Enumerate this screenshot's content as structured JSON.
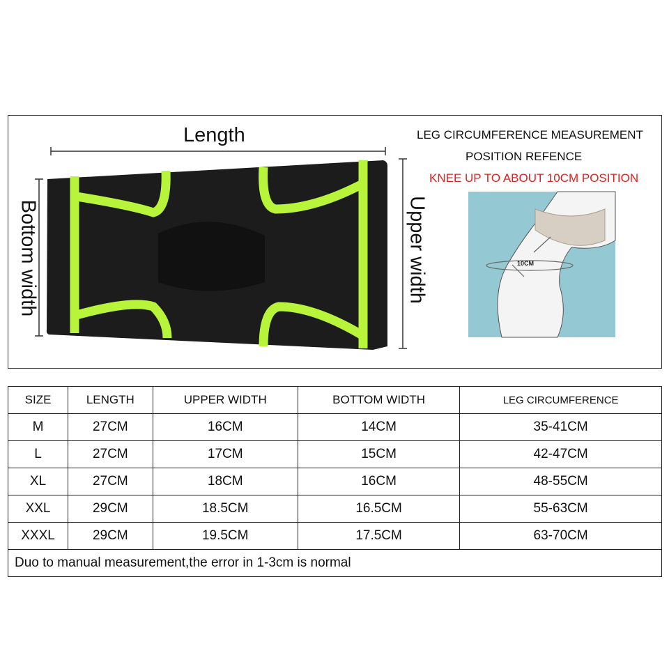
{
  "diagram": {
    "length_label": "Length",
    "bottom_width_label": "Bottom width",
    "upper_width_label": "Upper width",
    "measure_title_line1": "LEG CIRCUMFERENCE MEASUREMENT",
    "measure_title_line2": "POSITION REFENCE",
    "measure_note": "KNEE UP TO ABOUT 10CM POSITION",
    "knee_label": "10CM",
    "colors": {
      "sleeve": "#1c1c1c",
      "accent": "#b8f53a",
      "note": "#e0201c",
      "knee_bg": "#94c8d2"
    }
  },
  "size_table": {
    "headers": [
      "SIZE",
      "LENGTH",
      "UPPER WIDTH",
      "BOTTOM WIDTH",
      "LEG CIRCUMFERENCE"
    ],
    "rows": [
      [
        "M",
        "27CM",
        "16CM",
        "14CM",
        "35-41CM"
      ],
      [
        "L",
        "27CM",
        "17CM",
        "15CM",
        "42-47CM"
      ],
      [
        "XL",
        "27CM",
        "18CM",
        "16CM",
        "48-55CM"
      ],
      [
        "XXL",
        "29CM",
        "18.5CM",
        "16.5CM",
        "55-63CM"
      ],
      [
        "XXXL",
        "29CM",
        "19.5CM",
        "17.5CM",
        "63-70CM"
      ]
    ],
    "footnote": "Duo to manual measurement,the error in 1-3cm is normal"
  }
}
